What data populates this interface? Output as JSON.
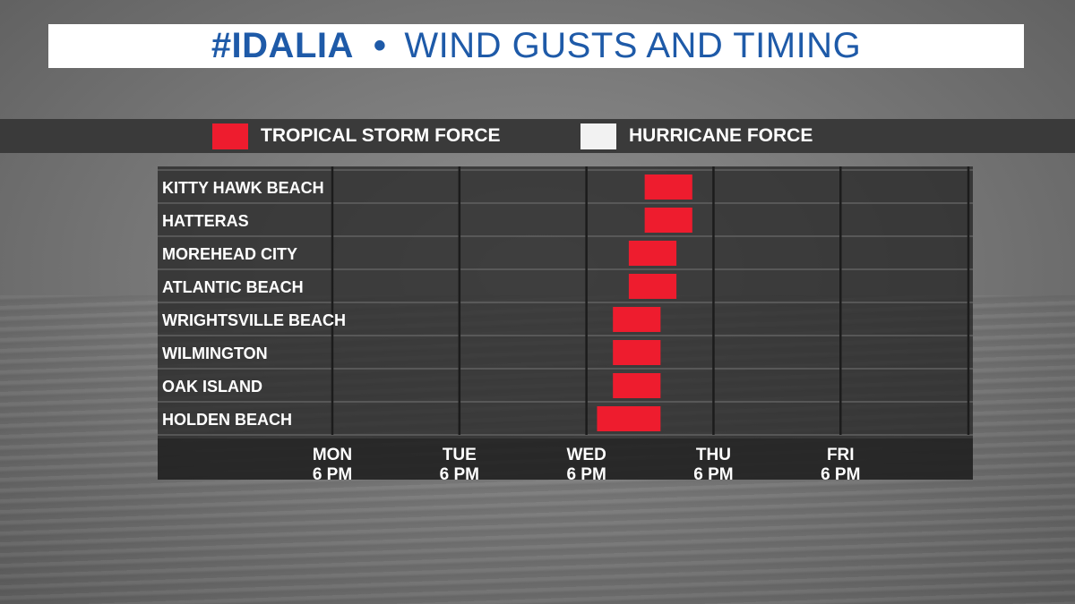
{
  "title": {
    "hashtag": "#IDALIA",
    "separator": "•",
    "text": "WIND GUSTS AND TIMING"
  },
  "colors": {
    "title_text": "#1e5aa8",
    "tropical_storm": "#ee1c2e",
    "hurricane": "#f2f2f2",
    "panel": "#2a2a2a"
  },
  "chart_data": {
    "type": "bar",
    "orientation": "horizontal-range",
    "legend": [
      {
        "label": "TROPICAL STORM FORCE",
        "color": "#ee1c2e"
      },
      {
        "label": "HURRICANE FORCE",
        "color": "#f2f2f2"
      }
    ],
    "legend_placement": "top",
    "categories": [
      "KITTY HAWK BEACH",
      "HATTERAS",
      "MOREHEAD CITY",
      "ATLANTIC BEACH",
      "WRIGHTSVILLE BEACH",
      "WILMINGTON",
      "OAK ISLAND",
      "HOLDEN BEACH"
    ],
    "ticks": [
      {
        "day": "MON",
        "time": "6 PM",
        "value": 0
      },
      {
        "day": "TUE",
        "time": "6 PM",
        "value": 24
      },
      {
        "day": "WED",
        "time": "6 PM",
        "value": 48
      },
      {
        "day": "THU",
        "time": "6 PM",
        "value": 72
      },
      {
        "day": "FRI",
        "time": "6 PM",
        "value": 96
      }
    ],
    "x_unit": "hours after MON 6 PM",
    "xlim": [
      -33,
      121
    ],
    "series": [
      {
        "name": "TROPICAL STORM FORCE",
        "ranges": [
          [
            59,
            68
          ],
          [
            59,
            68
          ],
          [
            56,
            65
          ],
          [
            56,
            65
          ],
          [
            53,
            62
          ],
          [
            53,
            62
          ],
          [
            53,
            62
          ],
          [
            50,
            62
          ]
        ]
      }
    ],
    "grid": true
  }
}
